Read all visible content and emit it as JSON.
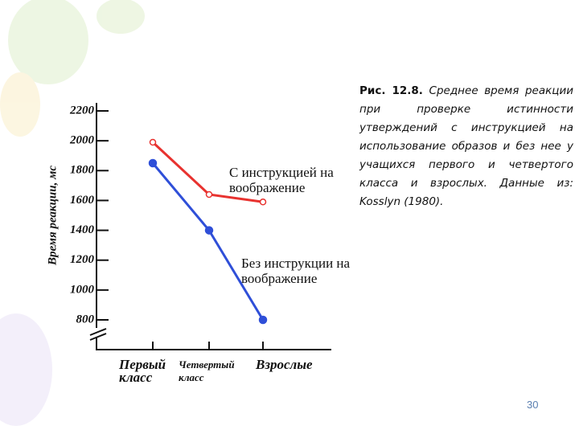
{
  "chart_data": {
    "type": "line",
    "y_label": "Время реакции, мс",
    "categories": [
      "Первый класс",
      "Четвертый класс",
      "Взрослые"
    ],
    "series": [
      {
        "name": "С инструкцией на воображение",
        "color": "#e8322f",
        "marker": "open",
        "values": [
          1990,
          1640,
          1590
        ]
      },
      {
        "name": "Без инструкции на воображение",
        "color": "#2f4fd8",
        "marker": "filled",
        "values": [
          1850,
          1400,
          800
        ]
      }
    ],
    "ylim": [
      800,
      2200
    ],
    "yticks": [
      800,
      1000,
      1200,
      1400,
      1600,
      1800,
      2000,
      2200
    ]
  },
  "caption": {
    "label": "Рис. 12.8.",
    "text": "Среднее время реакции при проверке истинности утверждений с инструкцией на использование образов и без нее у учащихся первого и четвертого класса и взрослых. Данные из: Kosslyn (1980)."
  },
  "page_number": "30"
}
